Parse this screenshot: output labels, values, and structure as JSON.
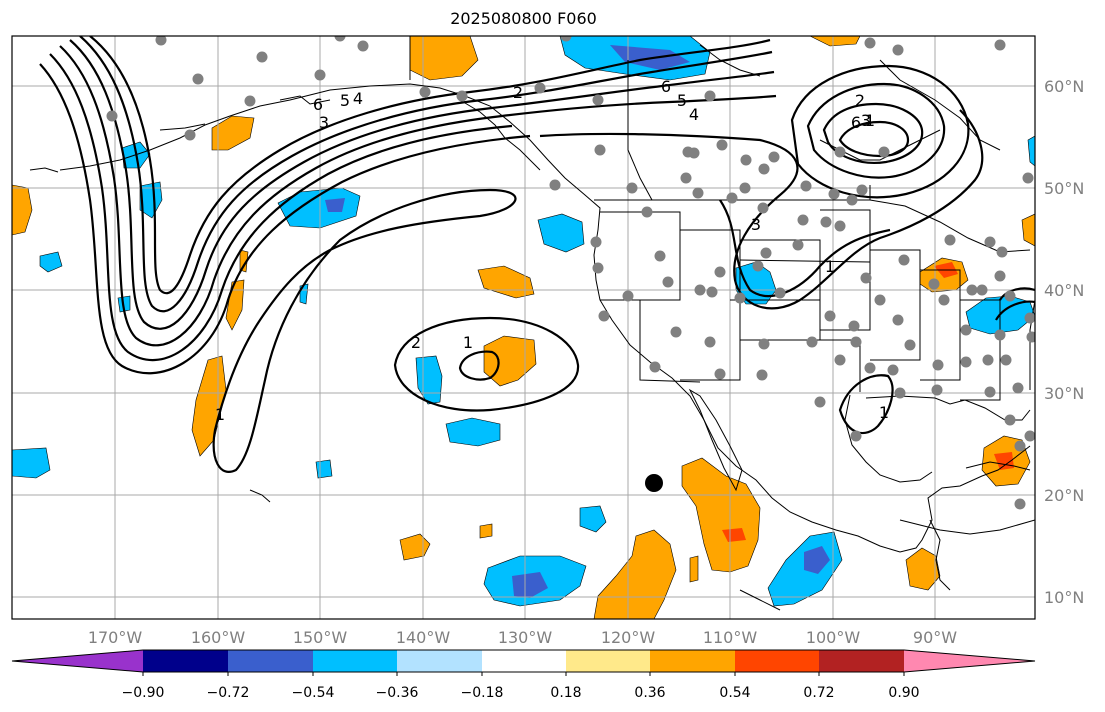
{
  "title": "2025080800 F060",
  "map": {
    "lon_ticks": [
      "170°W",
      "160°W",
      "150°W",
      "140°W",
      "130°W",
      "120°W",
      "110°W",
      "100°W",
      "90°W"
    ],
    "lat_ticks": [
      "60°N",
      "50°N",
      "40°N",
      "30°N",
      "20°N",
      "10°N"
    ],
    "contour_labels": [
      "6",
      "5",
      "4",
      "3",
      "2",
      "1",
      "2",
      "1",
      "1",
      "6",
      "5",
      "4",
      "3",
      "2",
      "1",
      "3",
      "6",
      "1"
    ],
    "marker_color": "#000000",
    "station_color": "#808080"
  },
  "colorbar": {
    "tick_labels": [
      "−0.90",
      "−0.72",
      "−0.54",
      "−0.36",
      "−0.18",
      "0.18",
      "0.36",
      "0.54",
      "0.72",
      "0.90"
    ],
    "colors": [
      "#9932CC",
      "#00008B",
      "#3A5FCD",
      "#00BFFF",
      "#B2E2FF",
      "#FFFFFF",
      "#FFE98A",
      "#FFA500",
      "#FF4500",
      "#B22222",
      "#FF88B0"
    ]
  }
}
